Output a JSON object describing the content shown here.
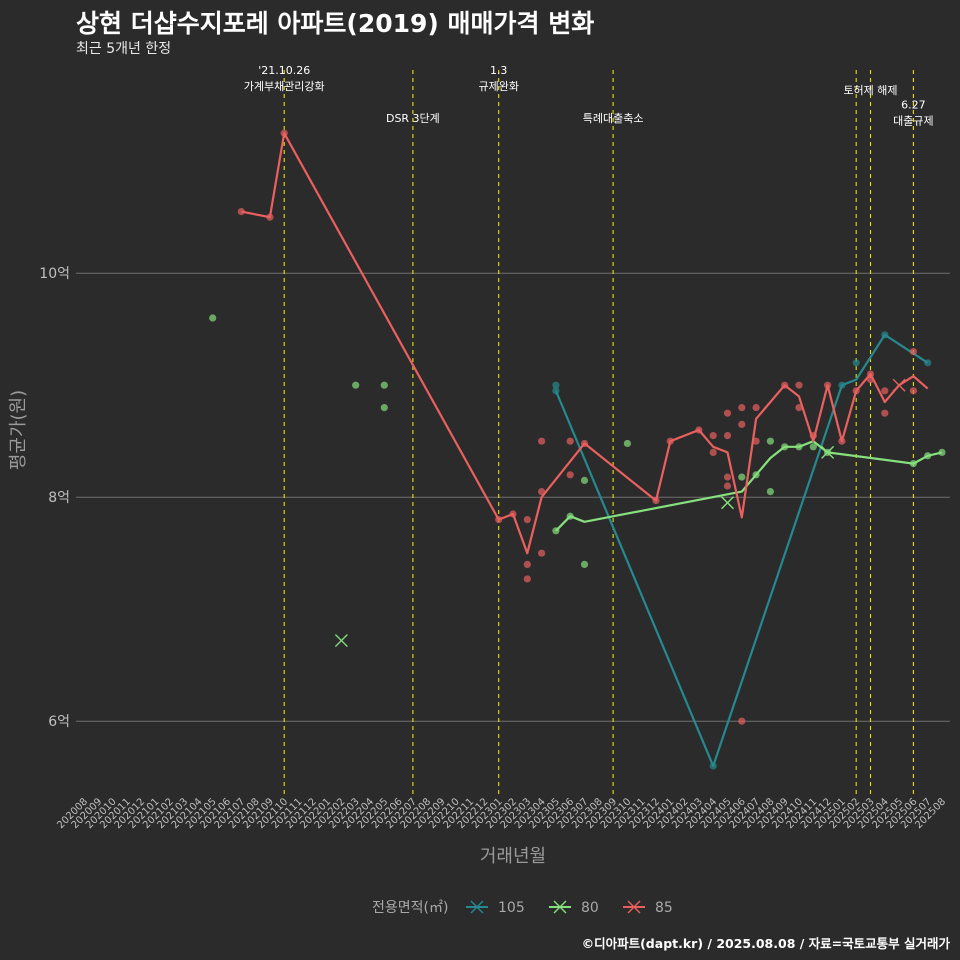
{
  "header": {
    "title": "상현 더샵수지포레 아파트(2019) 매매가격 변화",
    "subtitle": "최근 5개년 한정"
  },
  "footer": {
    "caption": "©디아파트(dapt.kr) / 2025.08.08 / 자료=국토교통부 실거래가"
  },
  "chart_data": {
    "type": "line",
    "xlabel": "거래년월",
    "ylabel": "평균가(원)",
    "x_categories": [
      "202008",
      "202009",
      "202010",
      "202011",
      "202012",
      "202101",
      "202102",
      "202103",
      "202104",
      "202105",
      "202106",
      "202107",
      "202108",
      "202109",
      "202110",
      "202111",
      "202112",
      "202201",
      "202202",
      "202203",
      "202204",
      "202205",
      "202206",
      "202207",
      "202208",
      "202209",
      "202210",
      "202211",
      "202212",
      "202301",
      "202302",
      "202303",
      "202304",
      "202305",
      "202306",
      "202307",
      "202308",
      "202309",
      "202310",
      "202311",
      "202312",
      "202401",
      "202402",
      "202403",
      "202404",
      "202405",
      "202406",
      "202407",
      "202408",
      "202409",
      "202410",
      "202411",
      "202412",
      "202501",
      "202502",
      "202503",
      "202504",
      "202505",
      "202506",
      "202507",
      "202508"
    ],
    "y_ticks": [
      {
        "value": 6,
        "label": "6억"
      },
      {
        "value": 8,
        "label": "8억"
      },
      {
        "value": 10,
        "label": "10억"
      }
    ],
    "ylim": [
      5.35,
      11.85
    ],
    "grid": true,
    "legend_position": "bottom",
    "legend_title": "전용면적(㎡)",
    "series": [
      {
        "name": "105",
        "color": "#26898f",
        "line": [
          [
            "202305",
            8.95
          ],
          [
            "202404",
            5.6
          ],
          [
            "202501",
            9.0
          ],
          [
            "202502",
            9.05
          ],
          [
            "202504",
            9.45
          ],
          [
            "202507",
            9.2
          ]
        ],
        "points": [
          [
            "202305",
            8.95
          ],
          [
            "202305",
            9.0
          ],
          [
            "202404",
            5.6
          ],
          [
            "202501",
            9.0
          ],
          [
            "202502",
            9.2
          ],
          [
            "202504",
            9.45
          ],
          [
            "202507",
            9.2
          ]
        ],
        "x_marks": []
      },
      {
        "name": "80",
        "color": "#86e07e",
        "line": [
          [
            "202305",
            7.7
          ],
          [
            "202306",
            7.83
          ],
          [
            "202307",
            7.78
          ],
          [
            "202406",
            8.05
          ],
          [
            "202407",
            8.2
          ],
          [
            "202408",
            8.35
          ],
          [
            "202409",
            8.45
          ],
          [
            "202410",
            8.45
          ],
          [
            "202411",
            8.5
          ],
          [
            "202412",
            8.4
          ],
          [
            "202506",
            8.3
          ],
          [
            "202507",
            8.37
          ],
          [
            "202508",
            8.4
          ]
        ],
        "points": [
          [
            "202105",
            9.6
          ],
          [
            "202203",
            9.0
          ],
          [
            "202205",
            9.0
          ],
          [
            "202205",
            8.8
          ],
          [
            "202305",
            7.7
          ],
          [
            "202306",
            7.83
          ],
          [
            "202307",
            7.4
          ],
          [
            "202307",
            8.15
          ],
          [
            "202310",
            8.48
          ],
          [
            "202406",
            8.18
          ],
          [
            "202407",
            8.2
          ],
          [
            "202408",
            8.5
          ],
          [
            "202408",
            8.05
          ],
          [
            "202409",
            8.45
          ],
          [
            "202410",
            8.45
          ],
          [
            "202411",
            8.45
          ],
          [
            "202412",
            8.4
          ],
          [
            "202506",
            8.3
          ],
          [
            "202507",
            8.37
          ],
          [
            "202508",
            8.4
          ]
        ],
        "x_marks": [
          [
            "202202",
            6.72
          ],
          [
            "202405",
            7.95
          ],
          [
            "202412",
            8.4
          ]
        ]
      },
      {
        "name": "85",
        "color": "#e9605f",
        "line": [
          [
            "202107",
            10.55
          ],
          [
            "202109",
            10.5
          ],
          [
            "202110",
            11.25
          ],
          [
            "202301",
            7.8
          ],
          [
            "202302",
            7.85
          ],
          [
            "202303",
            7.5
          ],
          [
            "202304",
            8.0
          ],
          [
            "202307",
            8.48
          ],
          [
            "202312",
            7.97
          ],
          [
            "202401",
            8.5
          ],
          [
            "202403",
            8.6
          ],
          [
            "202404",
            8.45
          ],
          [
            "202405",
            8.4
          ],
          [
            "202406",
            7.82
          ],
          [
            "202407",
            8.7
          ],
          [
            "202409",
            9.0
          ],
          [
            "202410",
            8.9
          ],
          [
            "202411",
            8.5
          ],
          [
            "202412",
            9.0
          ],
          [
            "202501",
            8.5
          ],
          [
            "202502",
            8.95
          ],
          [
            "202503",
            9.1
          ],
          [
            "202504",
            8.85
          ],
          [
            "202505",
            9.0
          ],
          [
            "202506",
            9.08
          ],
          [
            "202507",
            8.97
          ]
        ],
        "points": [
          [
            "202107",
            10.55
          ],
          [
            "202109",
            10.5
          ],
          [
            "202110",
            11.25
          ],
          [
            "202301",
            7.8
          ],
          [
            "202302",
            7.85
          ],
          [
            "202303",
            7.8
          ],
          [
            "202303",
            7.4
          ],
          [
            "202303",
            7.27
          ],
          [
            "202304",
            8.5
          ],
          [
            "202304",
            8.05
          ],
          [
            "202304",
            7.5
          ],
          [
            "202306",
            8.5
          ],
          [
            "202306",
            8.2
          ],
          [
            "202307",
            8.48
          ],
          [
            "202312",
            7.97
          ],
          [
            "202401",
            8.5
          ],
          [
            "202403",
            8.6
          ],
          [
            "202404",
            8.55
          ],
          [
            "202404",
            8.4
          ],
          [
            "202405",
            8.75
          ],
          [
            "202405",
            8.55
          ],
          [
            "202405",
            8.18
          ],
          [
            "202405",
            8.1
          ],
          [
            "202406",
            8.8
          ],
          [
            "202406",
            8.65
          ],
          [
            "202406",
            6.0
          ],
          [
            "202407",
            8.8
          ],
          [
            "202407",
            8.5
          ],
          [
            "202409",
            9.0
          ],
          [
            "202410",
            9.0
          ],
          [
            "202410",
            8.8
          ],
          [
            "202411",
            8.55
          ],
          [
            "202412",
            9.0
          ],
          [
            "202501",
            8.5
          ],
          [
            "202502",
            8.95
          ],
          [
            "202503",
            9.1
          ],
          [
            "202503",
            9.05
          ],
          [
            "202504",
            8.95
          ],
          [
            "202504",
            8.75
          ],
          [
            "202506",
            9.3
          ],
          [
            "202506",
            8.95
          ]
        ],
        "x_marks": [
          [
            "202505",
            9.0
          ]
        ]
      }
    ],
    "annotations": [
      {
        "x": "202110",
        "lines": [
          "'21.10.26",
          "가계부채관리강화"
        ],
        "label_y": 11.78
      },
      {
        "x": "202207",
        "lines": [
          "DSR 3단계"
        ],
        "label_y": 11.35
      },
      {
        "x": "202301",
        "lines": [
          "1.3",
          "규제완화"
        ],
        "label_y": 11.78
      },
      {
        "x": "202309",
        "lines": [
          "특례대출축소"
        ],
        "label_y": 11.35
      },
      {
        "x": "202502",
        "lines": [],
        "label_y": 11.6
      },
      {
        "x": "202503",
        "lines": [
          "토허제 해제"
        ],
        "label_y": 11.6
      },
      {
        "x": "202506",
        "lines": [
          "6.27",
          "대출규제"
        ],
        "label_y": 11.47
      }
    ],
    "annotation_line_color": "#e6e600"
  }
}
